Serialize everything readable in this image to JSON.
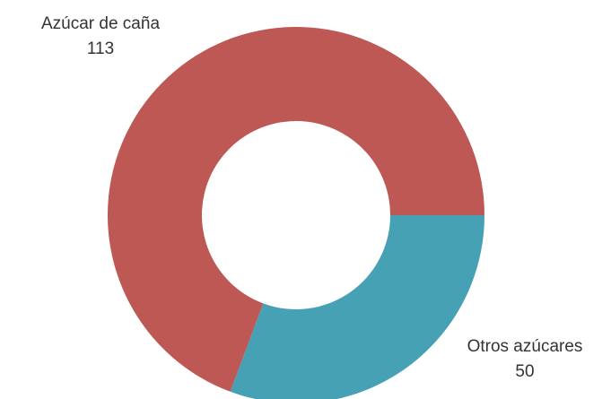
{
  "chart_data": {
    "type": "donut",
    "categories": [
      "Azúcar de caña",
      "Otros azúcares"
    ],
    "values": [
      113,
      50
    ],
    "colors": [
      "#bd5855",
      "#46a1b5"
    ]
  }
}
